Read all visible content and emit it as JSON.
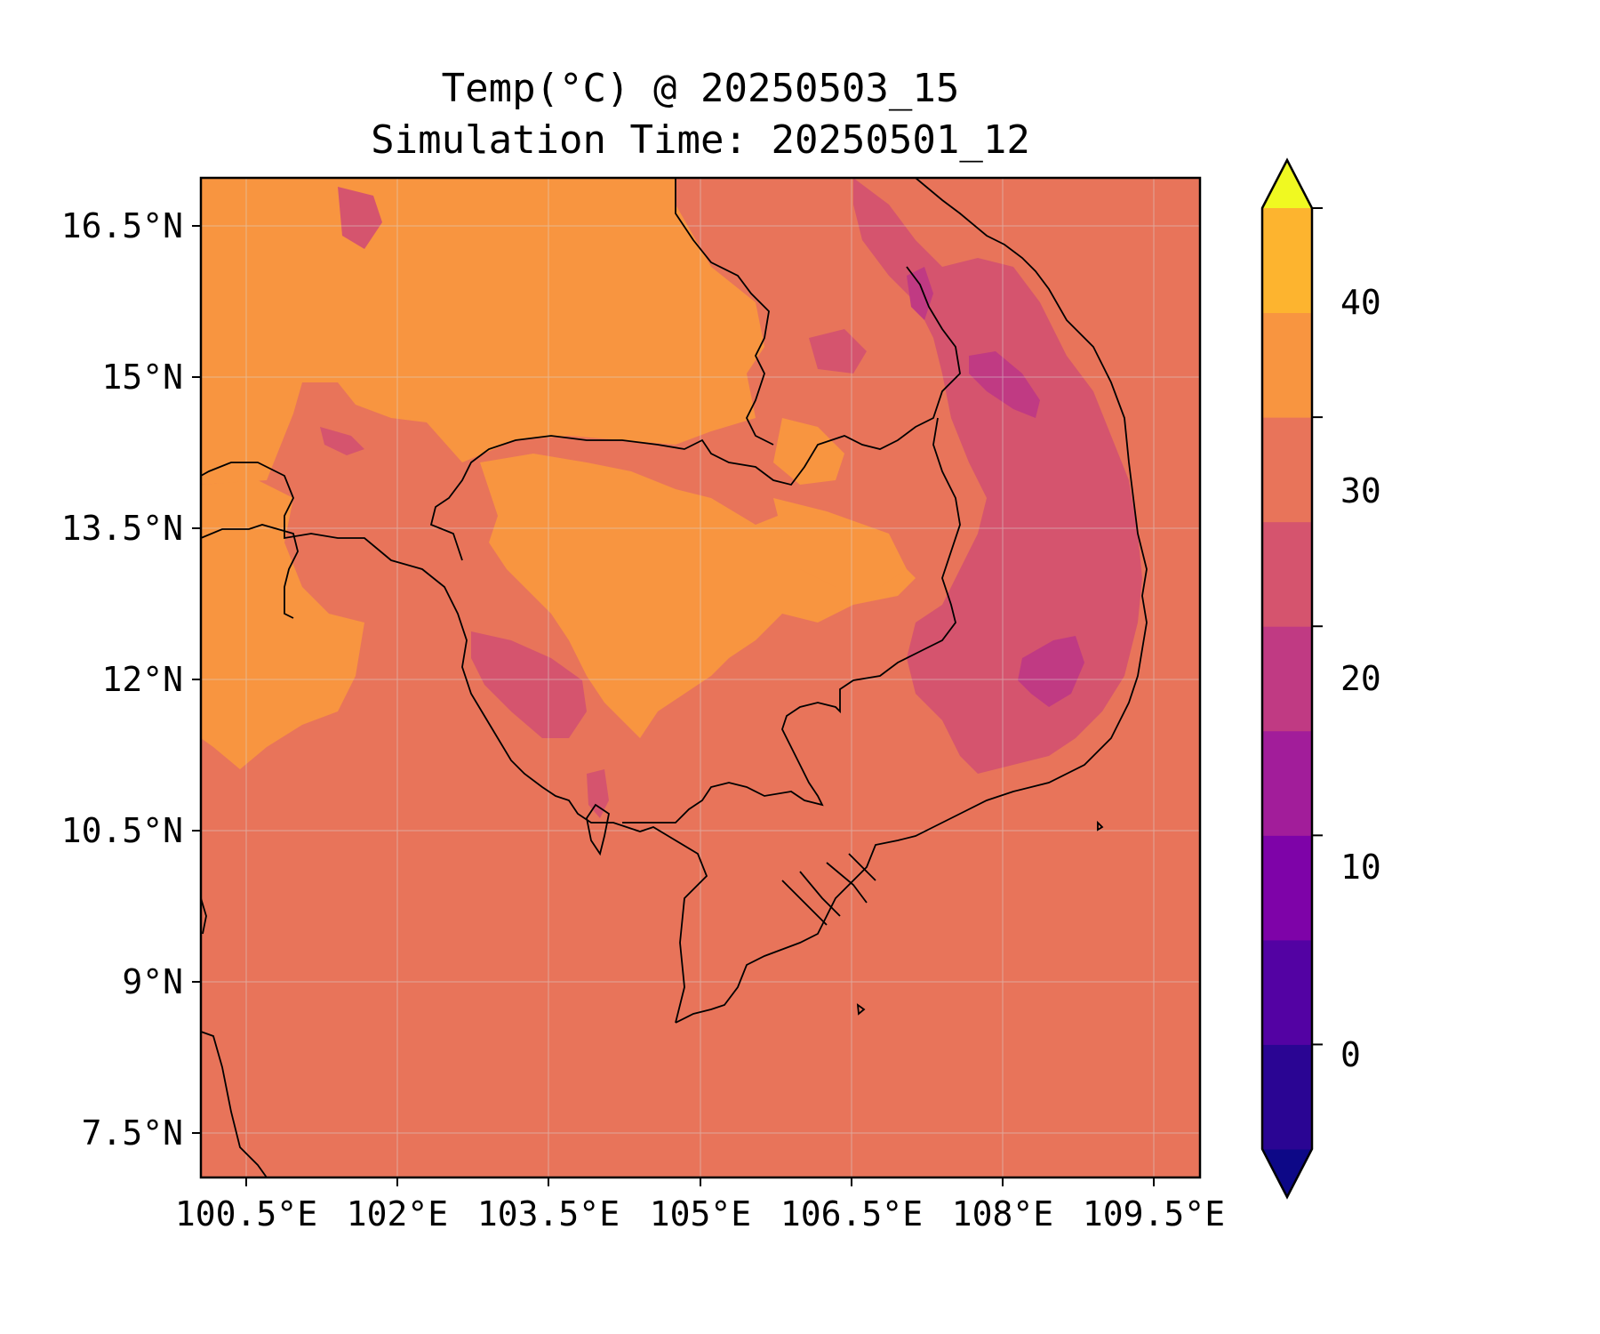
{
  "map": {
    "title": "Temp(°C) @ 20250503_15",
    "subtitle": "Simulation Time: 20250501_12",
    "lon_ticks": [
      "100.5°E",
      "102°E",
      "103.5°E",
      "105°E",
      "106.5°E",
      "108°E",
      "109.5°E"
    ],
    "lat_ticks": [
      "16.5°N",
      "15°N",
      "13.5°N",
      "12°N",
      "10.5°N",
      "9°N",
      "7.5°N"
    ],
    "background_color": "#e8745a"
  },
  "colorbar": {
    "tick_labels": [
      "40",
      "30",
      "20",
      "10",
      "0"
    ],
    "levels": [
      -5,
      0,
      5,
      10,
      15,
      20,
      25,
      30,
      35,
      40,
      45
    ],
    "colors": [
      "#0d0887",
      "#2a0593",
      "#5302a3",
      "#7e03a8",
      "#a21d9a",
      "#c03a83",
      "#d5546e",
      "#e8745a",
      "#f89540",
      "#fdb42f",
      "#f0f921"
    ]
  },
  "legend_colors": {
    "band_20_25": "#d5546e",
    "band_25_30": "#e8745a",
    "band_30_35": "#f89540",
    "band_15_20": "#c03a83"
  }
}
